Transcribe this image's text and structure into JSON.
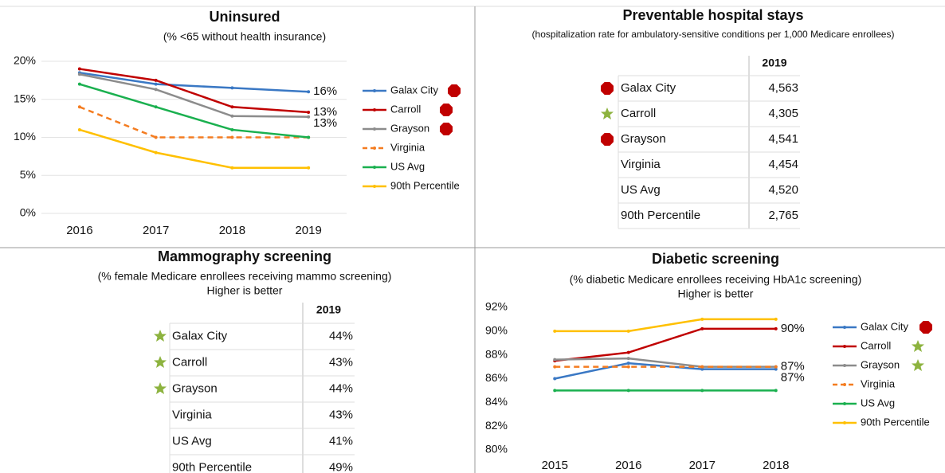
{
  "chart_data": [
    {
      "type": "line",
      "title": "Uninsured",
      "subtitle": "(% <65 without health insurance)",
      "categories": [
        "2016",
        "2017",
        "2018",
        "2019"
      ],
      "ylim": [
        0,
        20
      ],
      "yticks": [
        {
          "value": 0,
          "label": "0%"
        },
        {
          "value": 5,
          "label": "5%"
        },
        {
          "value": 10,
          "label": "10%"
        },
        {
          "value": 15,
          "label": "15%"
        },
        {
          "value": 20,
          "label": "20%"
        }
      ],
      "grid": true,
      "legend": "right",
      "series": [
        {
          "name": "Galax City",
          "color": "#3a78c4",
          "style": "solid",
          "values": [
            18.5,
            17,
            16.5,
            16
          ],
          "value_labels": [
            null,
            null,
            null,
            "16%"
          ]
        },
        {
          "name": "Carroll",
          "color": "#c00000",
          "style": "solid",
          "values": [
            19,
            17.5,
            14,
            13.3
          ],
          "value_labels": [
            null,
            null,
            null,
            "13%"
          ]
        },
        {
          "name": "Grayson",
          "color": "#8c8c8c",
          "style": "solid",
          "values": [
            18.3,
            16.3,
            12.8,
            12.7
          ],
          "value_labels": [
            null,
            null,
            null,
            "13%"
          ]
        },
        {
          "name": "Virginia",
          "color": "#f47c20",
          "style": "dashed",
          "values": [
            14,
            10,
            10,
            10
          ]
        },
        {
          "name": "US Avg",
          "color": "#1ab04f",
          "style": "solid",
          "values": [
            17,
            14,
            11,
            10
          ]
        },
        {
          "name": "90th Percentile",
          "color": "#ffc000",
          "style": "solid",
          "values": [
            11,
            8,
            6,
            6
          ]
        }
      ]
    },
    {
      "type": "line",
      "title": "Diabetic screening",
      "subtitle": "(% diabetic Medicare enrollees receiving HbA1c screening)",
      "note": "Higher is better",
      "categories": [
        "2015",
        "2016",
        "2017",
        "2018"
      ],
      "ylim": [
        80,
        92
      ],
      "yticks": [
        {
          "value": 80,
          "label": "80%"
        },
        {
          "value": 82,
          "label": "82%"
        },
        {
          "value": 84,
          "label": "84%"
        },
        {
          "value": 86,
          "label": "86%"
        },
        {
          "value": 88,
          "label": "88%"
        },
        {
          "value": 90,
          "label": "90%"
        },
        {
          "value": 92,
          "label": "92%"
        }
      ],
      "grid": false,
      "legend": "right",
      "series": [
        {
          "name": "Galax City",
          "color": "#3a78c4",
          "style": "solid",
          "values": [
            86,
            87.3,
            86.8,
            86.8
          ],
          "value_labels": [
            null,
            null,
            null,
            "87%"
          ]
        },
        {
          "name": "Carroll",
          "color": "#c00000",
          "style": "solid",
          "values": [
            87.5,
            88.2,
            90.2,
            90.2
          ],
          "value_labels": [
            null,
            null,
            null,
            "90%"
          ]
        },
        {
          "name": "Grayson",
          "color": "#8c8c8c",
          "style": "solid",
          "values": [
            87.6,
            87.7,
            87,
            87
          ],
          "value_labels": [
            null,
            null,
            null,
            "87%"
          ]
        },
        {
          "name": "Virginia",
          "color": "#f47c20",
          "style": "dashed",
          "values": [
            87,
            87,
            87,
            87
          ]
        },
        {
          "name": "US Avg",
          "color": "#1ab04f",
          "style": "solid",
          "values": [
            85,
            85,
            85,
            85
          ]
        },
        {
          "name": "90th Percentile",
          "color": "#ffc000",
          "style": "solid",
          "values": [
            90,
            90,
            91,
            91
          ]
        }
      ]
    }
  ],
  "tables": [
    {
      "title": "Preventable hospital stays",
      "subtitle": "(hospitalization rate for ambulatory-sensitive conditions per 1,000 Medicare enrollees)",
      "header": "2019",
      "rows": [
        [
          "Galax City",
          "4,563"
        ],
        [
          "Carroll",
          "4,305"
        ],
        [
          "Grayson",
          "4,541"
        ],
        [
          "Virginia",
          "4,454"
        ],
        [
          "US Avg",
          "4,520"
        ],
        [
          "90th Percentile",
          "2,765"
        ]
      ]
    },
    {
      "title": "Mammography screening",
      "subtitle": "(% female Medicare enrollees receiving mammo screening)",
      "note": "Higher is better",
      "header": "2019",
      "rows": [
        [
          "Galax City",
          "44%"
        ],
        [
          "Carroll",
          "43%"
        ],
        [
          "Grayson",
          "44%"
        ],
        [
          "Virginia",
          "43%"
        ],
        [
          "US Avg",
          "41%"
        ],
        [
          "90th Percentile",
          "49%"
        ]
      ]
    }
  ]
}
